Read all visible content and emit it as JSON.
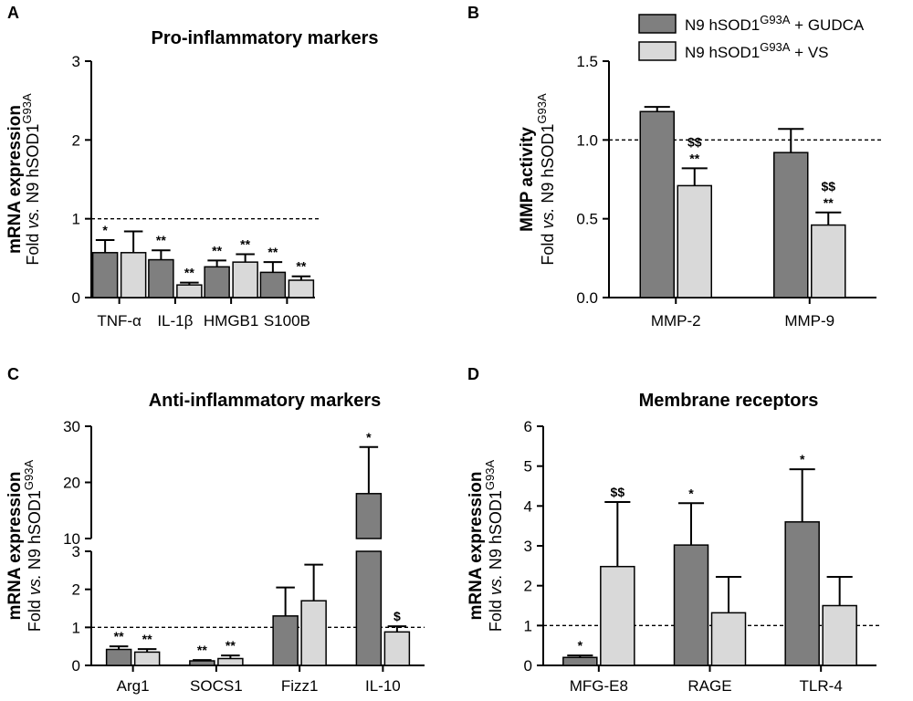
{
  "colors": {
    "gudca": "#7f7f7f",
    "vs": "#d9d9d9"
  },
  "chart_data": [
    {
      "panel": "A",
      "type": "bar",
      "title": "Pro-inflammatory markers",
      "ylabel_bold": "mRNA expression",
      "ylabel_fold": "Fold",
      "ylabel_vs": "vs.",
      "ylabel_cell": "N9 hSOD1",
      "ylabel_sup": "G93A",
      "ylim": [
        0,
        3
      ],
      "yticks": [
        0,
        1,
        2,
        3
      ],
      "ytick_labels": [
        "0",
        "1",
        "2",
        "3"
      ],
      "reference_line": 1,
      "categories": [
        "TNF-α",
        "IL-1β",
        "HMGB1",
        "S100B"
      ],
      "series": [
        {
          "name": "N9 hSOD1G93A + GUDCA",
          "values": [
            0.57,
            0.48,
            0.39,
            0.32
          ],
          "errors": [
            0.16,
            0.12,
            0.08,
            0.13
          ],
          "sig": [
            "*",
            "**",
            "**",
            "**"
          ]
        },
        {
          "name": "N9 hSOD1G93A + VS",
          "values": [
            0.57,
            0.16,
            0.45,
            0.22
          ],
          "errors": [
            0.27,
            0.03,
            0.1,
            0.05
          ],
          "sig": [
            "",
            "**",
            "**",
            "**"
          ]
        }
      ]
    },
    {
      "panel": "B",
      "type": "bar",
      "title": "",
      "ylabel_bold": "MMP activity",
      "ylabel_fold": "Fold",
      "ylabel_vs": "vs.",
      "ylabel_cell": "N9 hSOD1",
      "ylabel_sup": "G93A",
      "ylim": [
        0,
        1.5
      ],
      "yticks": [
        0,
        0.5,
        1,
        1.5
      ],
      "ytick_labels": [
        "0.0",
        "0.5",
        "1.0",
        "1.5"
      ],
      "reference_line": 1,
      "categories": [
        "MMP-2",
        "MMP-9"
      ],
      "series": [
        {
          "name": "N9 hSOD1G93A + GUDCA",
          "values": [
            1.18,
            0.92
          ],
          "errors": [
            0.03,
            0.15
          ],
          "sig": [
            "",
            ""
          ]
        },
        {
          "name": "N9 hSOD1G93A + VS",
          "values": [
            0.71,
            0.46
          ],
          "errors": [
            0.11,
            0.08
          ],
          "sig": [
            "$$\n**",
            "$$\n**"
          ]
        }
      ]
    },
    {
      "panel": "C",
      "type": "bar",
      "title": "Anti-inflammatory markers",
      "ylabel_bold": "mRNA expression",
      "ylabel_fold": "Fold",
      "ylabel_vs": "vs.",
      "ylabel_cell": "N9 hSOD1",
      "ylabel_sup": "G93A",
      "axis_break": true,
      "ylim_lower": [
        0,
        3
      ],
      "ylim_upper": [
        10,
        30
      ],
      "yticks": [
        0,
        1,
        2,
        3,
        10,
        20,
        30
      ],
      "ytick_labels": [
        "0",
        "1",
        "2",
        "3",
        "10",
        "20",
        "30"
      ],
      "reference_line": 1,
      "categories": [
        "Arg1",
        "SOCS1",
        "Fizz1",
        "IL-10"
      ],
      "series": [
        {
          "name": "N9 hSOD1G93A + GUDCA",
          "values": [
            0.42,
            0.12,
            1.3,
            18.0
          ],
          "errors": [
            0.08,
            0.02,
            0.75,
            8.3
          ],
          "sig": [
            "**",
            "**",
            "",
            "*"
          ]
        },
        {
          "name": "N9 hSOD1G93A + VS",
          "values": [
            0.35,
            0.18,
            1.7,
            0.88
          ],
          "errors": [
            0.08,
            0.08,
            0.95,
            0.15
          ],
          "sig": [
            "**",
            "**",
            "",
            "$"
          ]
        }
      ]
    },
    {
      "panel": "D",
      "type": "bar",
      "title": "Membrane receptors",
      "ylabel_bold": "mRNA expression",
      "ylabel_fold": "Fold",
      "ylabel_vs": "vs.",
      "ylabel_cell": "N9 hSOD1",
      "ylabel_sup": "G93A",
      "ylim": [
        0,
        6
      ],
      "yticks": [
        0,
        1,
        2,
        3,
        4,
        5,
        6
      ],
      "ytick_labels": [
        "0",
        "1",
        "2",
        "3",
        "4",
        "5",
        "6"
      ],
      "reference_line": 1,
      "categories": [
        "MFG-E8",
        "RAGE",
        "TLR-4"
      ],
      "series": [
        {
          "name": "N9 hSOD1G93A + GUDCA",
          "values": [
            0.2,
            3.02,
            3.6
          ],
          "errors": [
            0.05,
            1.05,
            1.32
          ],
          "sig": [
            "*",
            "*",
            "*"
          ]
        },
        {
          "name": "N9 hSOD1G93A + VS",
          "values": [
            2.48,
            1.32,
            1.5
          ],
          "errors": [
            1.62,
            0.9,
            0.72
          ],
          "sig": [
            "$$",
            "",
            ""
          ]
        }
      ]
    }
  ],
  "legend": [
    {
      "base": "N9 hSOD1",
      "sup": "G93A",
      "suffix": " + GUDCA"
    },
    {
      "base": "N9 hSOD1",
      "sup": "G93A",
      "suffix": " + VS"
    }
  ]
}
